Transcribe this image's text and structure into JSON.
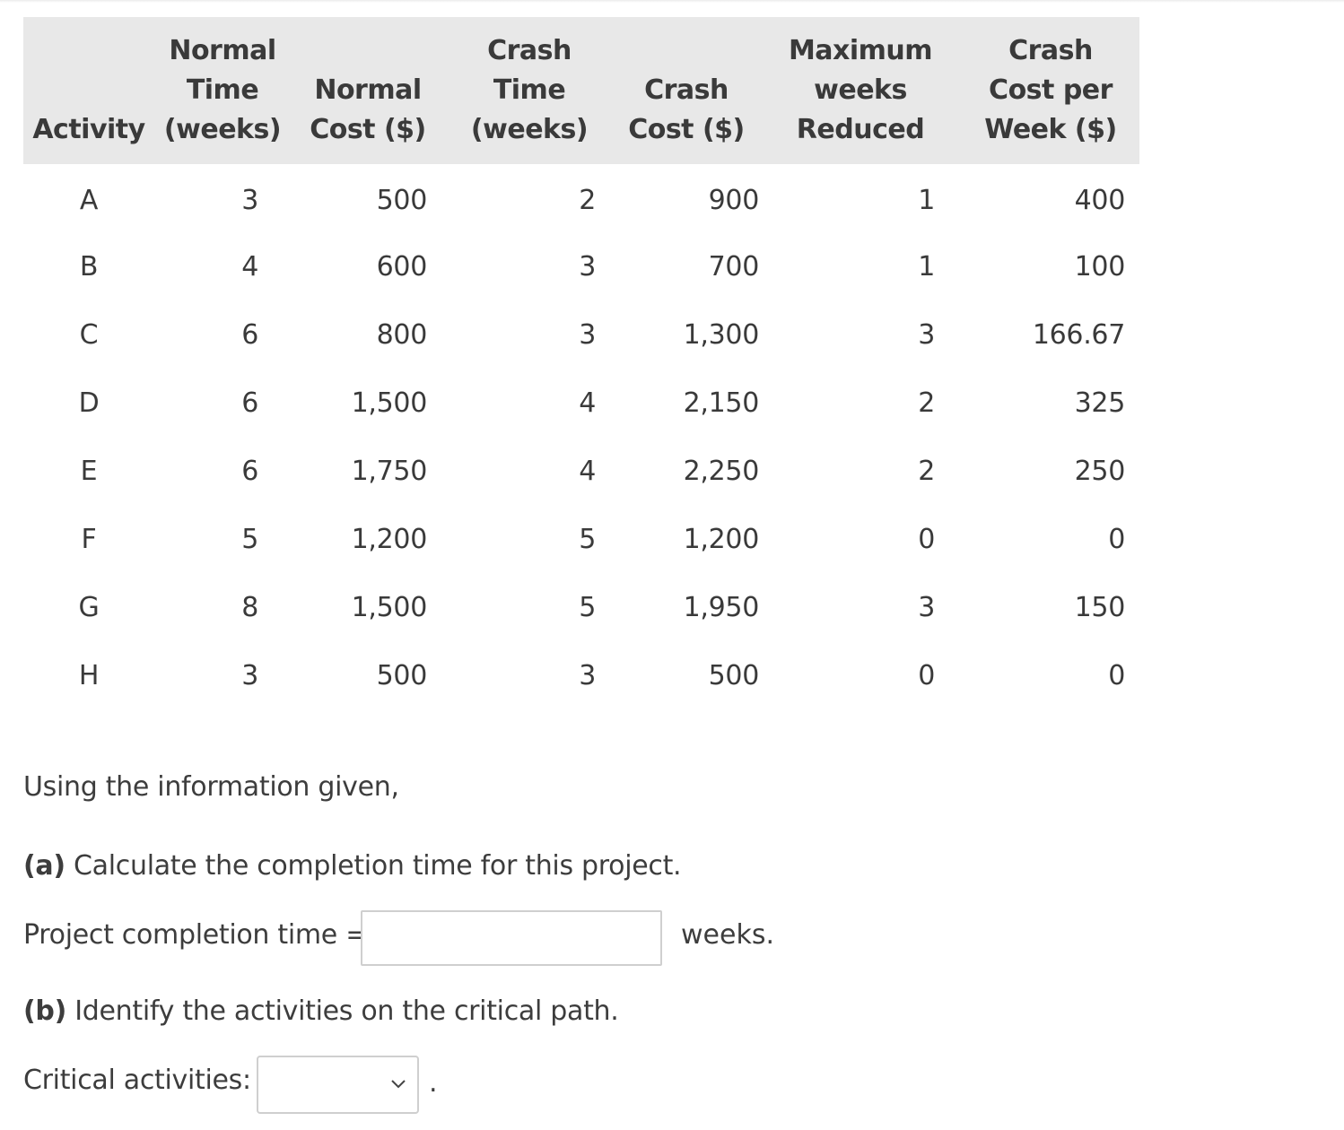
{
  "table": {
    "headers": [
      [
        "Activity"
      ],
      [
        "Normal",
        "Time",
        "(weeks)"
      ],
      [
        "Normal",
        "Cost ($)"
      ],
      [
        "Crash",
        "Time",
        "(weeks)"
      ],
      [
        "Crash",
        "Cost ($)"
      ],
      [
        "Maximum",
        "weeks",
        "Reduced"
      ],
      [
        "Crash",
        "Cost per",
        "Week ($)"
      ]
    ],
    "rows": [
      [
        "A",
        "3",
        "500",
        "2",
        "900",
        "1",
        "400"
      ],
      [
        "B",
        "4",
        "600",
        "3",
        "700",
        "1",
        "100"
      ],
      [
        "C",
        "6",
        "800",
        "3",
        "1,300",
        "3",
        "166.67"
      ],
      [
        "D",
        "6",
        "1,500",
        "4",
        "2,150",
        "2",
        "325"
      ],
      [
        "E",
        "6",
        "1,750",
        "4",
        "2,250",
        "2",
        "250"
      ],
      [
        "F",
        "5",
        "1,200",
        "5",
        "1,200",
        "0",
        "0"
      ],
      [
        "G",
        "8",
        "1,500",
        "5",
        "1,950",
        "3",
        "150"
      ],
      [
        "H",
        "3",
        "500",
        "3",
        "500",
        "0",
        "0"
      ]
    ]
  },
  "intro": "Using the information given,",
  "part_a": {
    "label": "(a)",
    "question": " Calculate the completion time for this project.",
    "answer_label": "Project completion time =",
    "answer_value": "",
    "unit": "weeks."
  },
  "part_b": {
    "label": "(b)",
    "question": " Identify the activities on the critical path.",
    "answer_label": "Critical activities:",
    "selected_value": "",
    "trailing": "."
  }
}
